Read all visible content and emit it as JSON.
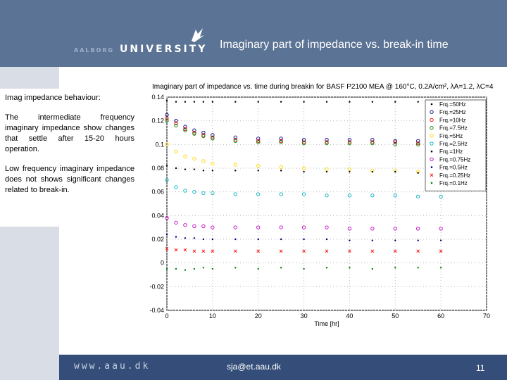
{
  "header": {
    "logo_left": "AALBORG",
    "logo_right": "UNIVERSITY",
    "title": "Imaginary part of impedance vs. break-in time"
  },
  "panel": {
    "subtitle": "Imag impedance behaviour:",
    "para1": "The intermediate frequency imaginary impedance show changes that settle after 15-20 hours operation.",
    "para2": "Low frequency imaginary impedance does not shows significant changes related to break-in."
  },
  "footer": {
    "url": "www.aau.dk",
    "email": "sja@et.aau.dk",
    "page": "11"
  },
  "chart_data": {
    "type": "scatter",
    "title": "Imaginary part of impedance vs. time during breakin for BASF P2100 MEA @ 160°C, 0.2A/cm², λA=1.2, λC=4",
    "xlabel": "Time [hr]",
    "ylabel": "",
    "xlim": [
      0,
      70
    ],
    "ylim": [
      -0.04,
      0.14
    ],
    "xticks": [
      0,
      10,
      20,
      30,
      40,
      50,
      60,
      70
    ],
    "yticks": [
      -0.04,
      -0.02,
      0,
      0.02,
      0.04,
      0.06,
      0.08,
      0.1,
      0.12,
      0.14
    ],
    "ytick_labels": [
      "-0.04",
      "-0.02",
      "0",
      "0.02",
      "0.04",
      "0.06",
      "0.08",
      "0.1",
      "0.12",
      "0.14"
    ],
    "grid": true,
    "legend_position": "top-right",
    "series": [
      {
        "name": "Frq.=50Hz",
        "color": "#000000",
        "marker": "dot",
        "x": [
          0,
          2,
          4,
          6,
          8,
          10,
          15,
          20,
          25,
          30,
          35,
          40,
          45,
          50,
          55,
          60
        ],
        "y": [
          0.137,
          0.136,
          0.136,
          0.136,
          0.136,
          0.136,
          0.136,
          0.136,
          0.136,
          0.136,
          0.136,
          0.136,
          0.136,
          0.136,
          0.136,
          0.136
        ]
      },
      {
        "name": "Frq.=25Hz",
        "color": "#000080",
        "marker": "circle",
        "x": [
          0,
          2,
          4,
          6,
          8,
          10,
          15,
          20,
          25,
          30,
          35,
          40,
          45,
          50,
          55,
          60
        ],
        "y": [
          0.125,
          0.12,
          0.115,
          0.112,
          0.11,
          0.108,
          0.106,
          0.105,
          0.105,
          0.104,
          0.104,
          0.104,
          0.104,
          0.103,
          0.103,
          0.103
        ]
      },
      {
        "name": "Frq.=10Hz",
        "color": "#ff0000",
        "marker": "circle",
        "x": [
          0,
          2,
          4,
          6,
          8,
          10,
          15,
          20,
          25,
          30,
          35,
          40,
          45,
          50,
          55,
          60
        ],
        "y": [
          0.122,
          0.118,
          0.113,
          0.11,
          0.108,
          0.106,
          0.104,
          0.103,
          0.103,
          0.102,
          0.102,
          0.102,
          0.102,
          0.102,
          0.101,
          0.101
        ]
      },
      {
        "name": "Frq.=7.5Hz",
        "color": "#008000",
        "marker": "circle",
        "x": [
          0,
          2,
          4,
          6,
          8,
          10,
          15,
          20,
          25,
          30,
          35,
          40,
          45,
          50,
          55,
          60
        ],
        "y": [
          0.12,
          0.116,
          0.112,
          0.109,
          0.107,
          0.105,
          0.103,
          0.102,
          0.102,
          0.101,
          0.101,
          0.101,
          0.101,
          0.1,
          0.1,
          0.1
        ]
      },
      {
        "name": "Frq.=5Hz",
        "color": "#ffd700",
        "marker": "circle",
        "x": [
          0,
          2,
          4,
          6,
          8,
          10,
          15,
          20,
          25,
          30,
          35,
          40,
          45,
          50,
          55,
          60
        ],
        "y": [
          0.1,
          0.094,
          0.09,
          0.088,
          0.086,
          0.084,
          0.083,
          0.082,
          0.081,
          0.08,
          0.079,
          0.079,
          0.078,
          0.078,
          0.077,
          0.077
        ]
      },
      {
        "name": "Frq.=2.5Hz",
        "color": "#00b0c0",
        "marker": "circle",
        "x": [
          0,
          2,
          4,
          6,
          8,
          10,
          15,
          20,
          25,
          30,
          35,
          40,
          45,
          50,
          55,
          60
        ],
        "y": [
          0.07,
          0.064,
          0.061,
          0.06,
          0.059,
          0.059,
          0.058,
          0.058,
          0.058,
          0.058,
          0.057,
          0.057,
          0.057,
          0.057,
          0.056,
          0.056
        ]
      },
      {
        "name": "Frq.=1Hz",
        "color": "#000000",
        "marker": "dot",
        "x": [
          0,
          2,
          4,
          6,
          8,
          10,
          15,
          20,
          25,
          30,
          35,
          40,
          45,
          50,
          55,
          60
        ],
        "y": [
          0.082,
          0.08,
          0.079,
          0.079,
          0.078,
          0.078,
          0.078,
          0.078,
          0.078,
          0.077,
          0.077,
          0.077,
          0.077,
          0.077,
          0.076,
          0.076
        ]
      },
      {
        "name": "Frq.=0.75Hz",
        "color": "#c000c0",
        "marker": "circle",
        "x": [
          0,
          2,
          4,
          6,
          8,
          10,
          15,
          20,
          25,
          30,
          35,
          40,
          45,
          50,
          55,
          60
        ],
        "y": [
          0.038,
          0.034,
          0.032,
          0.031,
          0.031,
          0.03,
          0.03,
          0.03,
          0.03,
          0.03,
          0.03,
          0.029,
          0.029,
          0.029,
          0.029,
          0.029
        ]
      },
      {
        "name": "Frq.=0.5Hz",
        "color": "#000080",
        "marker": "dot",
        "x": [
          0,
          2,
          4,
          6,
          8,
          10,
          15,
          20,
          25,
          30,
          35,
          40,
          45,
          50,
          55,
          60
        ],
        "y": [
          0.024,
          0.022,
          0.021,
          0.021,
          0.02,
          0.02,
          0.02,
          0.02,
          0.02,
          0.02,
          0.02,
          0.019,
          0.019,
          0.019,
          0.019,
          0.019
        ]
      },
      {
        "name": "Frq.=0.25Hz",
        "color": "#ff0000",
        "marker": "cross",
        "x": [
          0,
          2,
          4,
          6,
          8,
          10,
          15,
          20,
          25,
          30,
          35,
          40,
          45,
          50,
          55,
          60
        ],
        "y": [
          0.012,
          0.011,
          0.011,
          0.01,
          0.01,
          0.01,
          0.01,
          0.01,
          0.01,
          0.01,
          0.01,
          0.01,
          0.01,
          0.01,
          0.01,
          0.01
        ]
      },
      {
        "name": "Frq.=0.1Hz",
        "color": "#008000",
        "marker": "dot",
        "x": [
          0,
          2,
          4,
          6,
          8,
          10,
          15,
          20,
          25,
          30,
          35,
          40,
          45,
          50,
          55,
          60
        ],
        "y": [
          -0.005,
          -0.005,
          -0.006,
          -0.005,
          -0.004,
          -0.005,
          -0.004,
          -0.005,
          -0.004,
          -0.005,
          -0.004,
          -0.004,
          -0.005,
          -0.004,
          -0.004,
          -0.004
        ]
      }
    ]
  }
}
